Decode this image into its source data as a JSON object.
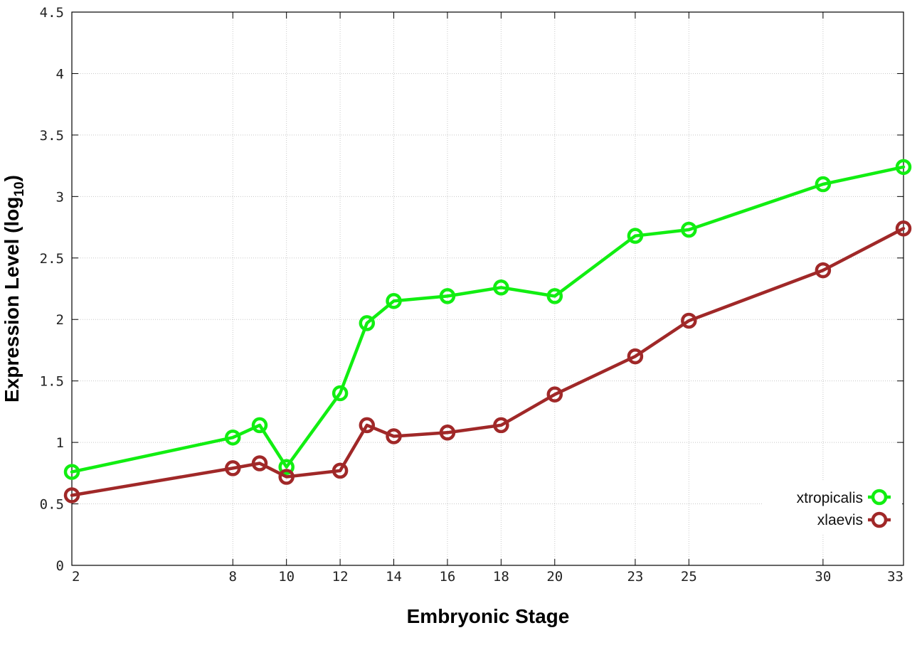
{
  "chart_data": {
    "type": "line",
    "xlabel": "Embryonic Stage",
    "ylabel_main": "Expression Level (log",
    "ylabel_sub": "10",
    "ylabel_close": ")",
    "xlim": [
      2,
      33
    ],
    "ylim": [
      0,
      4.5
    ],
    "x_ticks": [
      2,
      8,
      10,
      12,
      14,
      16,
      18,
      20,
      23,
      25,
      30,
      33
    ],
    "y_ticks": [
      0,
      0.5,
      1,
      1.5,
      2,
      2.5,
      3,
      3.5,
      4,
      4.5
    ],
    "y_tick_labels": [
      "0",
      "0.5",
      "1",
      "1.5",
      "2",
      "2.5",
      "3",
      "3.5",
      "4",
      "4.5"
    ],
    "x": [
      2,
      8,
      9,
      10,
      12,
      13,
      14,
      16,
      18,
      20,
      23,
      25,
      30,
      33
    ],
    "series": [
      {
        "name": "xtropicalis",
        "color": "#11ee11",
        "values": [
          0.76,
          1.04,
          1.14,
          0.8,
          1.4,
          1.97,
          2.15,
          2.19,
          2.26,
          2.19,
          2.68,
          2.73,
          3.1,
          3.24
        ]
      },
      {
        "name": "xlaevis",
        "color": "#a02828",
        "values": [
          0.57,
          0.79,
          0.83,
          0.72,
          0.77,
          1.14,
          1.05,
          1.08,
          1.14,
          1.39,
          1.7,
          1.99,
          2.4,
          2.74
        ]
      }
    ],
    "grid": true,
    "legend_position": "bottom-right"
  }
}
